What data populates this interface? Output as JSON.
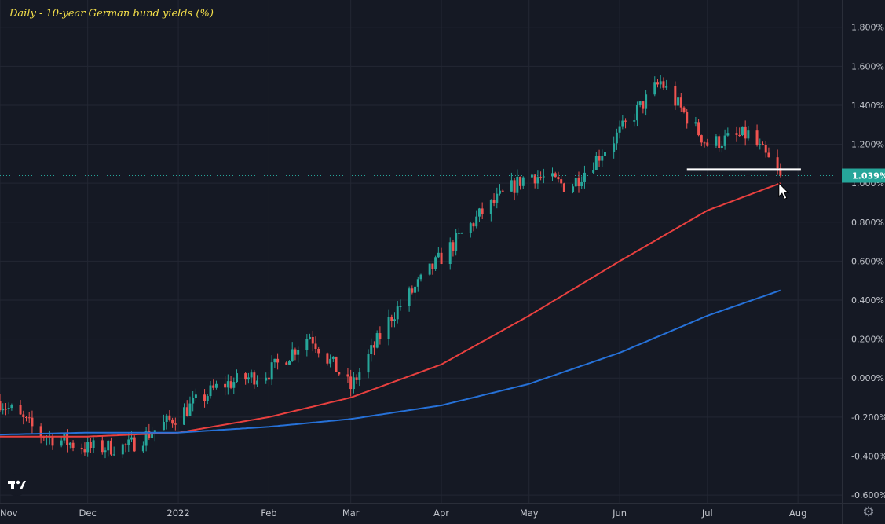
{
  "chart_data": {
    "type": "candlestick",
    "title": "Daily - 10-year German bund yields (%)",
    "ylim": [
      -0.64,
      1.94
    ],
    "y_ticks": [
      "1.800%",
      "1.600%",
      "1.400%",
      "1.200%",
      "1.000%",
      "0.800%",
      "0.600%",
      "0.400%",
      "0.200%",
      "0.000%",
      "-0.200%",
      "-0.400%",
      "-0.600%"
    ],
    "y_tick_values": [
      1.8,
      1.6,
      1.4,
      1.2,
      1.0,
      0.8,
      0.6,
      0.4,
      0.2,
      0.0,
      -0.2,
      -0.4,
      -0.6
    ],
    "x_ticks": [
      "Nov",
      "Dec",
      "2022",
      "Feb",
      "Mar",
      "Apr",
      "May",
      "Jun",
      "Jul",
      "Aug"
    ],
    "x_tick_dates": [
      "2021-11-01",
      "2021-12-01",
      "2022-01-01",
      "2022-02-01",
      "2022-03-01",
      "2022-04-01",
      "2022-05-01",
      "2022-06-01",
      "2022-07-01",
      "2022-08-01"
    ],
    "x_range": [
      "2021-11-01",
      "2022-08-16"
    ],
    "last_price": {
      "value": 1.039,
      "label": "1.039%"
    },
    "support_level": {
      "value": 1.07,
      "from": "2022-06-24",
      "to": "2022-08-02"
    },
    "series": [
      {
        "name": "",
        "type": "candles",
        "x": [
          "2021-11-01",
          "2021-11-15",
          "2021-12-01",
          "2021-12-15",
          "2022-01-01",
          "2022-01-15",
          "2022-02-01",
          "2022-02-15",
          "2022-03-01",
          "2022-03-15",
          "2022-04-01",
          "2022-04-15",
          "2022-05-01",
          "2022-05-15",
          "2022-06-01",
          "2022-06-15",
          "2022-07-01",
          "2022-07-15",
          "2022-07-26"
        ],
        "y": [
          -0.12,
          -0.29,
          -0.36,
          -0.35,
          -0.19,
          -0.04,
          0.03,
          0.22,
          -0.05,
          0.32,
          0.62,
          0.85,
          1.05,
          0.98,
          1.26,
          1.52,
          1.2,
          1.25,
          1.039
        ]
      },
      {
        "name": "",
        "type": "line",
        "x": [
          "2021-11-01",
          "2021-12-01",
          "2022-01-01",
          "2022-02-01",
          "2022-03-01",
          "2022-04-01",
          "2022-05-01",
          "2022-06-01",
          "2022-07-01",
          "2022-07-26"
        ],
        "y": [
          -0.3,
          -0.3,
          -0.28,
          -0.2,
          -0.1,
          0.07,
          0.32,
          0.6,
          0.86,
          1.0
        ]
      },
      {
        "name": "",
        "type": "line",
        "x": [
          "2021-11-01",
          "2021-12-01",
          "2022-01-01",
          "2022-02-01",
          "2022-03-01",
          "2022-04-01",
          "2022-05-01",
          "2022-06-01",
          "2022-07-01",
          "2022-07-26"
        ],
        "y": [
          -0.29,
          -0.28,
          -0.28,
          -0.25,
          -0.21,
          -0.14,
          -0.03,
          0.13,
          0.32,
          0.45
        ]
      }
    ],
    "colors": {
      "background": "#151924",
      "grid": "#232733",
      "up": "#26a69a",
      "down": "#ef5350",
      "ma_fast": "#e8403f",
      "ma_slow": "#2671d8",
      "support": "#ffffff",
      "axis_text": "#c2c5cc",
      "title": "#f5e04a",
      "price_label_bg": "#26a69a"
    },
    "grid": true,
    "annotations": [
      "cursor-arrow"
    ]
  },
  "icons": {
    "logo": "tradingview-logo",
    "settings": "gear-icon"
  }
}
